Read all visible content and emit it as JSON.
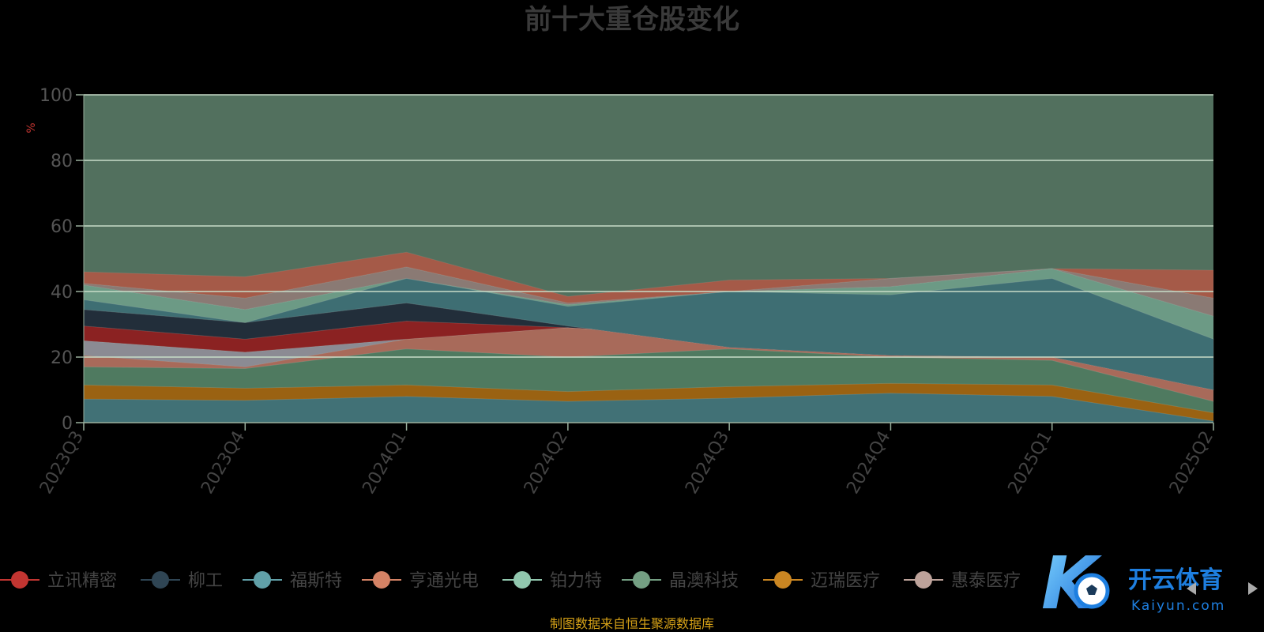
{
  "chart_data": {
    "type": "area",
    "title": "前十大重仓股变化",
    "ylabel": "%",
    "ylim": [
      0,
      100
    ],
    "yticks": [
      0,
      20,
      40,
      60,
      80,
      100
    ],
    "categories": [
      "2023Q3",
      "2023Q4",
      "2024Q1",
      "2024Q2",
      "2024Q3",
      "2024Q4",
      "2025Q1",
      "2025Q2"
    ],
    "legend_position": "bottom",
    "legend": [
      {
        "name": "立讯精密",
        "color": "#c23531"
      },
      {
        "name": "柳工",
        "color": "#2f4554"
      },
      {
        "name": "福斯特",
        "color": "#61a0a8"
      },
      {
        "name": "亨通光电",
        "color": "#d48265"
      },
      {
        "name": "铂力特",
        "color": "#91c7ae"
      },
      {
        "name": "晶澳科技",
        "color": "#749f83"
      },
      {
        "name": "迈瑞医疗",
        "color": "#ca8622"
      },
      {
        "name": "惠泰医疗",
        "color": "#bda29a"
      }
    ],
    "boundaries": [
      [
        7.2,
        6.8,
        8.0,
        6.5,
        7.5,
        9.0,
        8.0,
        0.5
      ],
      [
        11.5,
        10.5,
        11.5,
        9.5,
        11.0,
        12.0,
        11.5,
        3.0
      ],
      [
        17.0,
        16.5,
        22.5,
        20.0,
        22.5,
        20.0,
        19.0,
        6.5
      ],
      [
        20.5,
        17.0,
        25.5,
        29.0,
        26.0,
        25.5,
        23.5,
        10.0
      ],
      [
        25.0,
        21.5,
        25.5,
        29.0,
        31.5,
        28.5,
        33.5,
        25.5
      ],
      [
        29.5,
        25.5,
        31.0,
        29.0,
        26.0,
        25.5,
        23.5,
        15.0
      ],
      [
        34.5,
        30.5,
        36.5,
        29.5,
        23.0,
        20.5,
        20.0,
        10.0
      ],
      [
        37.5,
        30.5,
        44.0,
        35.5,
        40.0,
        39.0,
        44.0,
        25.5
      ],
      [
        42.0,
        34.5,
        44.0,
        36.0,
        40.0,
        41.5,
        47.0,
        32.5
      ],
      [
        42.5,
        38.0,
        47.5,
        36.5,
        40.0,
        44.0,
        47.0,
        38.0
      ],
      [
        46.0,
        44.5,
        52.0,
        38.5,
        43.5,
        44.0,
        47.0,
        46.5
      ]
    ],
    "grid": true
  },
  "footer": {
    "source": "制图数据来自恒生聚源数据库"
  },
  "watermark": {
    "brand": "开云体育",
    "domain": "Kaiyun.com"
  }
}
